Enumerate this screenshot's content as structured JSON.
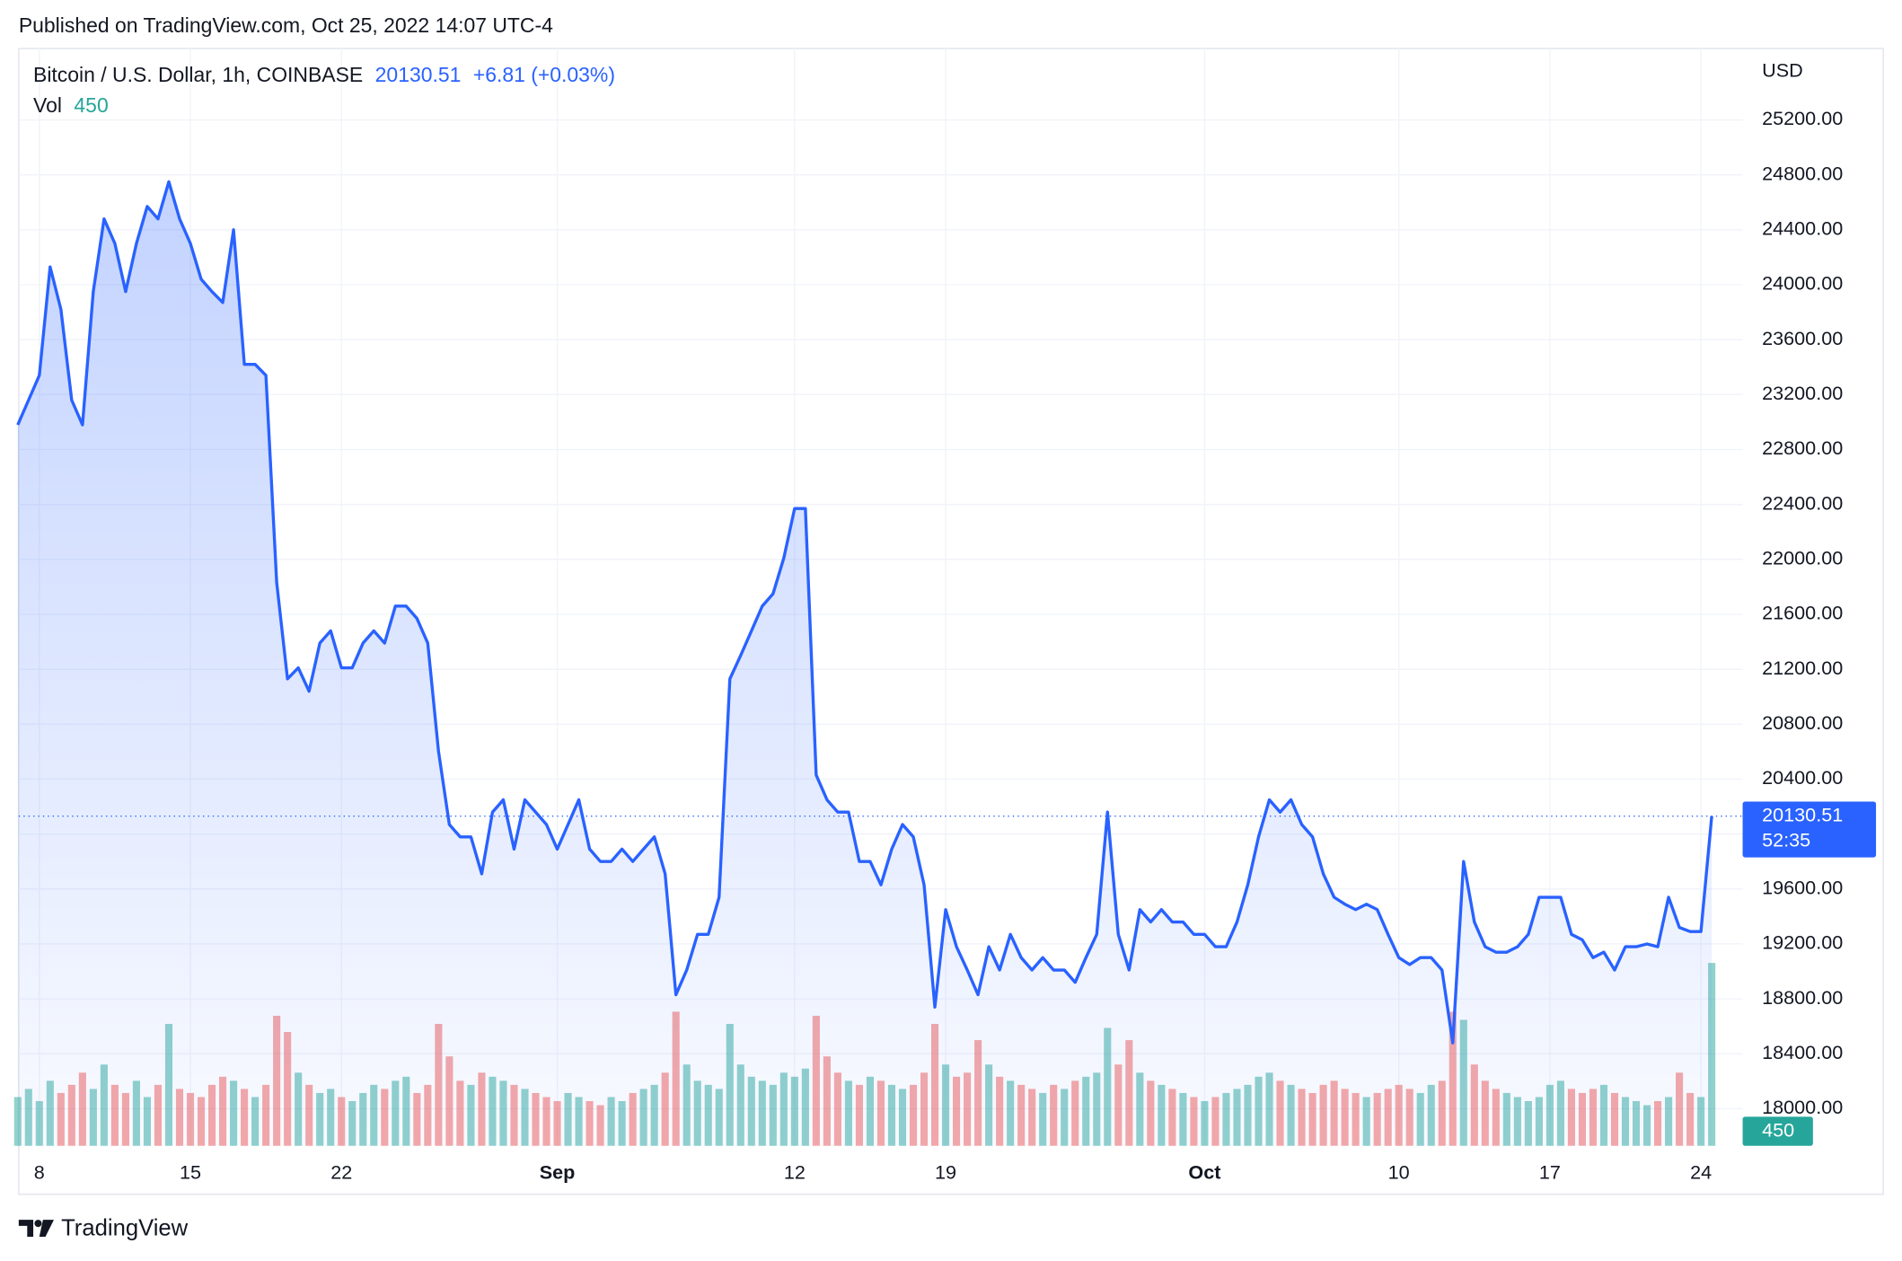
{
  "header": {
    "published": "Published on TradingView.com, Oct 25, 2022 14:07 UTC-4",
    "footer": "TradingView"
  },
  "chart_data": {
    "type": "area",
    "title": "Bitcoin / U.S. Dollar, 1h, COINBASE",
    "change": "+6.81 (+0.03%)",
    "countdown": "52:35",
    "y_label": "USD",
    "categories": [
      null,
      null,
      "8",
      null,
      null,
      null,
      null,
      null,
      null,
      null,
      null,
      null,
      null,
      null,
      null,
      null,
      "15",
      null,
      null,
      null,
      null,
      null,
      null,
      null,
      null,
      null,
      null,
      null,
      null,
      null,
      "22",
      null,
      null,
      null,
      null,
      null,
      null,
      null,
      null,
      null,
      null,
      null,
      null,
      null,
      null,
      null,
      null,
      null,
      null,
      null,
      "Sep",
      null,
      null,
      null,
      null,
      null,
      null,
      null,
      null,
      null,
      null,
      null,
      null,
      null,
      null,
      null,
      null,
      null,
      null,
      null,
      null,
      null,
      "12",
      null,
      null,
      null,
      null,
      null,
      null,
      null,
      null,
      null,
      null,
      null,
      null,
      null,
      "19",
      null,
      null,
      null,
      null,
      null,
      null,
      null,
      null,
      null,
      null,
      null,
      null,
      null,
      null,
      null,
      null,
      null,
      null,
      null,
      null,
      null,
      null,
      null,
      "Oct",
      null,
      null,
      null,
      null,
      null,
      null,
      null,
      null,
      null,
      null,
      null,
      null,
      null,
      null,
      null,
      null,
      null,
      "10",
      null,
      null,
      null,
      null,
      null,
      null,
      null,
      null,
      null,
      null,
      null,
      null,
      null,
      "17",
      null,
      null,
      null,
      null,
      null,
      null,
      null,
      null,
      null,
      null,
      null,
      null,
      null,
      "24",
      null
    ],
    "series": [
      {
        "name": "Bitcoin / U.S. Dollar, 1h, COINBASE",
        "color": "#2962ff",
        "values": [
          22980,
          23160,
          23340,
          24130,
          23820,
          23160,
          22980,
          23950,
          24480,
          24300,
          23950,
          24300,
          24570,
          24480,
          24750,
          24480,
          24300,
          24040,
          23950,
          23870,
          24400,
          23420,
          23420,
          23340,
          21830,
          21130,
          21210,
          21040,
          21390,
          21480,
          21210,
          21210,
          21390,
          21480,
          21390,
          21660,
          21660,
          21570,
          21390,
          20600,
          20070,
          19980,
          19980,
          19710,
          20160,
          20250,
          19890,
          20250,
          20160,
          20070,
          19890,
          20070,
          20250,
          19890,
          19800,
          19800,
          19890,
          19800,
          19890,
          19980,
          19710,
          18830,
          19010,
          19270,
          19270,
          19540,
          21130,
          21300,
          21480,
          21660,
          21750,
          22010,
          22370,
          22370,
          20430,
          20250,
          20160,
          20160,
          19800,
          19800,
          19630,
          19890,
          20070,
          19980,
          19630,
          18740,
          19450,
          19180,
          19010,
          18830,
          19180,
          19010,
          19270,
          19100,
          19010,
          19100,
          19010,
          19010,
          18920,
          19100,
          19270,
          20160,
          19270,
          19010,
          19450,
          19360,
          19450,
          19360,
          19360,
          19270,
          19270,
          19180,
          19180,
          19360,
          19630,
          19980,
          20250,
          20160,
          20250,
          20070,
          19980,
          19710,
          19540,
          19490,
          19450,
          19490,
          19450,
          19270,
          19100,
          19050,
          19100,
          19100,
          19010,
          18480,
          19800,
          19360,
          19180,
          19140,
          19140,
          19180,
          19270,
          19540,
          19540,
          19540,
          19270,
          19230,
          19100,
          19140,
          19010,
          19180,
          19180,
          19200,
          19180,
          19540,
          19320,
          19290,
          19290,
          20130.51
        ]
      }
    ],
    "volume": {
      "name": "Vol",
      "up_color": "#26a69a",
      "down_color": "#ef5350",
      "vlim": [
        0,
        2700
      ],
      "values": [
        120,
        140,
        110,
        160,
        130,
        150,
        180,
        140,
        200,
        150,
        130,
        160,
        120,
        150,
        300,
        140,
        130,
        120,
        150,
        170,
        160,
        140,
        120,
        150,
        320,
        280,
        180,
        150,
        130,
        140,
        120,
        110,
        130,
        150,
        140,
        160,
        170,
        130,
        150,
        300,
        220,
        160,
        150,
        180,
        170,
        160,
        150,
        140,
        130,
        120,
        110,
        130,
        120,
        110,
        100,
        120,
        110,
        130,
        140,
        150,
        180,
        330,
        200,
        160,
        150,
        140,
        300,
        200,
        170,
        160,
        150,
        180,
        170,
        190,
        320,
        220,
        180,
        160,
        150,
        170,
        160,
        150,
        140,
        150,
        180,
        300,
        200,
        170,
        180,
        260,
        200,
        170,
        160,
        150,
        140,
        130,
        150,
        140,
        160,
        170,
        180,
        290,
        200,
        260,
        180,
        160,
        150,
        140,
        130,
        120,
        110,
        120,
        130,
        140,
        150,
        170,
        180,
        160,
        150,
        140,
        130,
        150,
        160,
        140,
        130,
        120,
        130,
        140,
        150,
        140,
        130,
        150,
        160,
        330,
        310,
        200,
        160,
        140,
        130,
        120,
        110,
        120,
        150,
        160,
        140,
        130,
        140,
        150,
        130,
        120,
        110,
        100,
        110,
        120,
        180,
        130,
        120,
        450
      ]
    },
    "ylim": [
      17730,
      25720
    ],
    "yticks": [
      {
        "value": 18000,
        "label": "18000.00"
      },
      {
        "value": 18400,
        "label": "18400.00"
      },
      {
        "value": 18800,
        "label": "18800.00"
      },
      {
        "value": 19200,
        "label": "19200.00"
      },
      {
        "value": 19600,
        "label": "19600.00"
      },
      {
        "value": 20000,
        "label": "20000.00"
      },
      {
        "value": 20400,
        "label": "20400.00"
      },
      {
        "value": 20800,
        "label": "20800.00"
      },
      {
        "value": 21200,
        "label": "21200.00"
      },
      {
        "value": 21600,
        "label": "21600.00"
      },
      {
        "value": 22000,
        "label": "22000.00"
      },
      {
        "value": 22400,
        "label": "22400.00"
      },
      {
        "value": 22800,
        "label": "22800.00"
      },
      {
        "value": 23200,
        "label": "23200.00"
      },
      {
        "value": 23600,
        "label": "23600.00"
      },
      {
        "value": 24000,
        "label": "24000.00"
      },
      {
        "value": 24400,
        "label": "24400.00"
      },
      {
        "value": 24800,
        "label": "24800.00"
      },
      {
        "value": 25200,
        "label": "25200.00"
      }
    ],
    "grid": true
  }
}
